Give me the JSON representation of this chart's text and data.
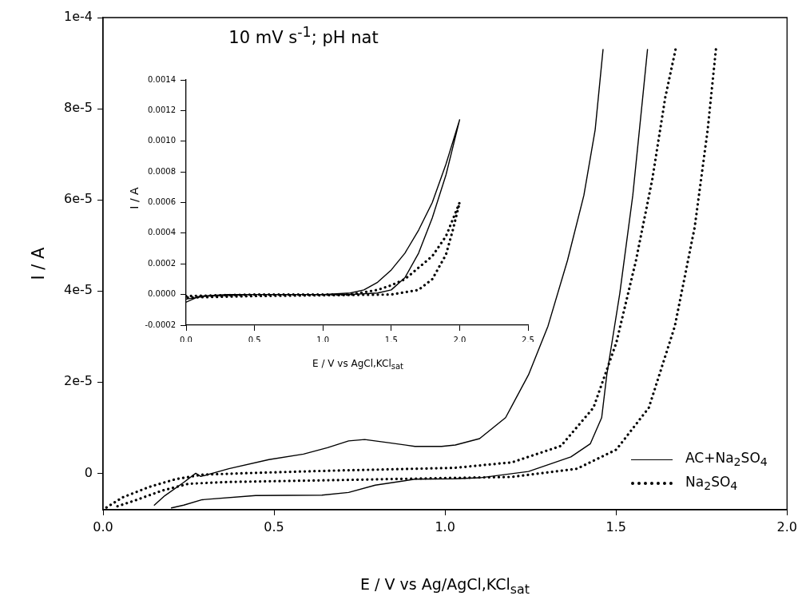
{
  "chart_data": [
    {
      "type": "line",
      "title": "10 mV s$^{-1}$; pH nat",
      "xlabel": "E / V vs Ag/AgCl,KCl$_{sat}$",
      "ylabel": "I / A",
      "xlim": [
        0,
        2
      ],
      "xticks": [
        {
          "value": 0,
          "label": "0.0"
        },
        0.5,
        {
          "value": 1,
          "label": "1.0"
        },
        1.5,
        {
          "value": 2,
          "label": "2.0"
        }
      ],
      "ylim": [
        -8e-06,
        0.0001
      ],
      "yticks": [
        0,
        {
          "value": 2e-05,
          "label": "2e-5"
        },
        {
          "value": 4e-05,
          "label": "4e-5"
        },
        {
          "value": 6e-05,
          "label": "6e-5"
        },
        {
          "value": 8e-05,
          "label": "8e-5"
        },
        {
          "value": 0.0001,
          "label": "1e-4"
        }
      ],
      "grid": false,
      "legend": "bottom right",
      "marker": "none",
      "series": [
        {
          "name": "AC+Na$_{2}$SO$_{4}$",
          "color": "#000000",
          "line_style": "solid",
          "x": [
            0.15,
            0.181,
            0.236,
            0.271,
            0.286,
            0.368,
            0.485,
            0.586,
            0.656,
            0.718,
            0.765,
            0.835,
            0.912,
            0.99,
            1.03,
            1.101,
            1.177,
            1.244,
            1.301,
            1.358,
            1.406,
            1.439,
            1.462,
            1.53,
            1.592,
            1.578,
            1.549,
            1.511,
            1.473,
            1.458,
            1.425,
            1.368,
            1.244,
            1.101,
            1.03,
            0.912,
            0.796,
            0.718,
            0.64,
            0.446,
            0.29,
            0.236,
            0.2
          ],
          "values": [
            -7e-06,
            -4.9e-06,
            -2e-06,
            0,
            -7e-07,
            1e-06,
            3e-06,
            4.2e-06,
            5.6e-06,
            7.1e-06,
            7.4e-06,
            6.7e-06,
            5.9e-06,
            5.9e-06,
            6.2e-06,
            7.6e-06,
            1.22e-05,
            2.16e-05,
            3.23e-05,
            4.67e-05,
            6.1e-05,
            7.54e-05,
            9.3e-05,
            null,
            9.3e-05,
            8.25e-05,
            6.1e-05,
            3.95e-05,
            2.16e-05,
            1.22e-05,
            6.5e-06,
            3.6e-06,
            4e-07,
            -1e-06,
            -1.2e-06,
            -1.3e-06,
            -2.6e-06,
            -4.2e-06,
            -4.8e-06,
            -4.9e-06,
            -5.8e-06,
            -7e-06,
            -7.6e-06
          ]
        },
        {
          "name": "Na$_{2}$SO$_{4}$",
          "color": "#000000",
          "line_style": "dotted",
          "x": [
            0.01,
            0.057,
            0.135,
            0.212,
            0.29,
            0.446,
            0.679,
            1.03,
            1.196,
            1.339,
            1.434,
            1.501,
            1.558,
            1.606,
            1.644,
            1.674,
            1.74,
            1.792,
            1.768,
            1.73,
            1.672,
            1.596,
            1.501,
            1.386,
            1.196,
            1.03,
            0.679,
            0.368,
            0.25,
            0.173,
            0.096,
            0.04
          ],
          "values": [
            -7.5e-06,
            -5.3e-06,
            -3e-06,
            -1.3e-06,
            -3e-07,
            1e-07,
            6e-07,
            1.2e-06,
            2.4e-06,
            6e-06,
            1.44e-05,
            2.87e-05,
            4.66e-05,
            6.45e-05,
            8.25e-05,
            9.3e-05,
            null,
            9.3e-05,
            7.54e-05,
            5.4e-05,
            3.23e-05,
            1.44e-05,
            5.2e-06,
            1e-06,
            -8e-07,
            -1e-06,
            -1.5e-06,
            -1.9e-06,
            -2.3e-06,
            -3.8e-06,
            -5.9e-06,
            -7.3e-06
          ]
        }
      ]
    },
    {
      "type": "line",
      "xlabel": "E / V vs AgCl,KCl$_{sat}$",
      "ylabel": "I / A",
      "xlim": [
        0,
        2.5
      ],
      "xticks": [
        {
          "value": 0,
          "label": "0.0"
        },
        0.5,
        {
          "value": 1,
          "label": "1.0"
        },
        1.5,
        {
          "value": 2,
          "label": "2.0"
        },
        2.5
      ],
      "ylim": [
        -0.0002,
        0.0014
      ],
      "yticks": [
        -0.0002,
        {
          "value": 0,
          "label": "0.0000"
        },
        0.0002,
        0.0004,
        0.0006,
        0.0008,
        {
          "value": 0.001,
          "label": "0.0010"
        },
        0.0012,
        0.0014
      ],
      "grid": false,
      "marker": "none",
      "series": [
        {
          "color": "#000000",
          "line_style": "solid",
          "x": [
            0,
            0.1,
            0.3,
            1,
            1.2,
            1.3,
            1.4,
            1.5,
            1.6,
            1.7,
            1.8,
            1.9,
            2,
            1.9,
            1.8,
            1.7,
            1.6,
            1.5,
            1.4,
            1.2,
            0.5,
            0.15,
            0
          ],
          "values": [
            -5e-05,
            -1e-05,
            0,
            0,
            1e-05,
            3e-05,
            8e-05,
            0.00016,
            0.00027,
            0.00042,
            0.0006,
            0.00085,
            0.00114,
            0.00078,
            0.0005,
            0.00027,
            0.00011,
            3e-05,
            1e-05,
            0,
            0,
            -1e-05,
            -3e-05
          ]
        },
        {
          "color": "#000000",
          "line_style": "dotted",
          "x": [
            0,
            0.5,
            1.2,
            1.4,
            1.5,
            1.6,
            1.8,
            1.9,
            2,
            1.95,
            1.9,
            1.8,
            1.7,
            1.5,
            0.5,
            0
          ],
          "values": [
            -1e-05,
            0,
            0,
            3e-05,
            6e-05,
            0.0001,
            0.00025,
            0.00038,
            0.0006,
            0.00042,
            0.00026,
            0.0001,
            3e-05,
            0,
            -1e-05,
            -2e-05
          ]
        }
      ]
    }
  ]
}
